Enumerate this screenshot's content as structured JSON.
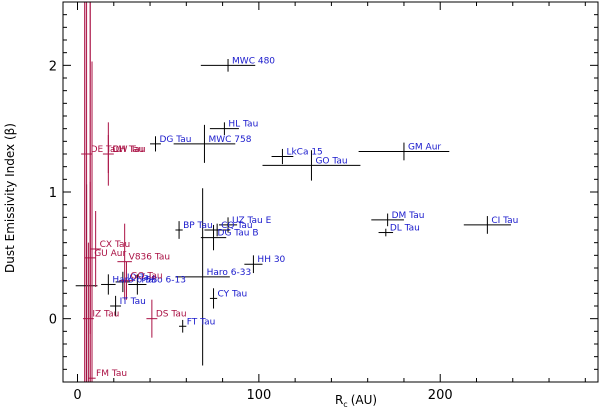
{
  "chart_data": {
    "type": "scatter",
    "title": "",
    "xlabel": "R",
    "xlabel_sub": "c",
    "xlabel_unit": "(AU)",
    "ylabel": "Dust Emissivity Index (β)",
    "xlim": [
      -8,
      287
    ],
    "ylim": [
      -0.5,
      2.5
    ],
    "xticks": [
      0,
      100,
      200
    ],
    "yticks": [
      0,
      1,
      2
    ],
    "colors": {
      "blue": "#1a1acc",
      "red": "#aa1144",
      "black": "#000000"
    },
    "blue_points": [
      {
        "name": "MWC 480",
        "x": 83,
        "xerr": 15,
        "y": 2.0,
        "yerr": 0.05
      },
      {
        "name": "HL Tau",
        "x": 81,
        "xerr": 8,
        "y": 1.5,
        "yerr": 0.05
      },
      {
        "name": "DG Tau",
        "x": 43,
        "xerr": 3,
        "y": 1.38,
        "yerr": 0.06
      },
      {
        "name": "MWC 758",
        "x": 70,
        "xerr": 17,
        "y": 1.38,
        "yerr": 0.15
      },
      {
        "name": "LkCa 15",
        "x": 113,
        "xerr": 6,
        "y": 1.28,
        "yerr": 0.06
      },
      {
        "name": "GO Tau",
        "x": 129,
        "xerr": 27,
        "y": 1.21,
        "yerr": 0.12
      },
      {
        "name": "GM Aur",
        "x": 180,
        "xerr": 25,
        "y": 1.32,
        "yerr": 0.07
      },
      {
        "name": "CI Tau",
        "x": 226,
        "xerr": 13,
        "y": 0.74,
        "yerr": 0.07
      },
      {
        "name": "DM Tau",
        "x": 171,
        "xerr": 9,
        "y": 0.78,
        "yerr": 0.05
      },
      {
        "name": "DL Tau",
        "x": 170,
        "xerr": 4,
        "y": 0.68,
        "yerr": 0.03
      },
      {
        "name": "UZ Tau E",
        "x": 83,
        "xerr": 5,
        "y": 0.74,
        "yerr": 0.06
      },
      {
        "name": "CQ Tau",
        "x": 77,
        "xerr": 7,
        "y": 0.7,
        "yerr": 0.05
      },
      {
        "name": "DG Tau B",
        "x": 75,
        "xerr": 7,
        "y": 0.64,
        "yerr": 0.1
      },
      {
        "name": "BP Tau",
        "x": 56,
        "xerr": 2,
        "y": 0.7,
        "yerr": 0.07
      },
      {
        "name": "HH 30",
        "x": 97,
        "xerr": 5,
        "y": 0.43,
        "yerr": 0.07
      },
      {
        "name": "Haro 6-33",
        "x": 69,
        "xerr": 15,
        "y": 0.33,
        "yerr": 0.7
      },
      {
        "name": "Haro 6-13",
        "x": 33,
        "xerr": 5,
        "y": 0.27,
        "yerr": 0.08
      },
      {
        "name": "Haro 6-5B",
        "x": 17,
        "xerr": 4,
        "y": 0.27,
        "yerr": 0.08
      },
      {
        "name": "CY Tau",
        "x": 75,
        "xerr": 2,
        "y": 0.16,
        "yerr": 0.08
      },
      {
        "name": "IQ Tau",
        "x": 25,
        "xerr": 4,
        "y": 0.29,
        "yerr": 0.08
      },
      {
        "name": "IT Tau",
        "x": 21,
        "xerr": 3,
        "y": 0.1,
        "yerr": 0.08
      },
      {
        "name": "FT Tau",
        "x": 58,
        "xerr": 2,
        "y": -0.06,
        "yerr": 0.05
      }
    ],
    "red_points": [
      {
        "name": "DE Tau",
        "x": 5,
        "xerr": 3,
        "y": 1.3,
        "yerr": 2.0
      },
      {
        "name": "DH Tau",
        "x": 17,
        "xerr": 3,
        "y": 1.3,
        "yerr": 0.25
      },
      {
        "name": "CW Tau",
        "x": 17,
        "xerr": 2,
        "y": 1.3,
        "yerr": 0.15
      },
      {
        "name": "CX Tau",
        "x": 10,
        "xerr": 3,
        "y": 0.55,
        "yerr": 0.3
      },
      {
        "name": "GU Aur",
        "x": 7,
        "xerr": 3,
        "y": 0.48,
        "yerr": 0.6
      },
      {
        "name": "V836 Tau",
        "x": 26,
        "xerr": 4,
        "y": 0.45,
        "yerr": 0.3
      },
      {
        "name": "GO Tau ",
        "x": 27,
        "xerr": 4,
        "y": 0.3,
        "yerr": 0.15
      },
      {
        "name": "IZ Tau",
        "x": 6,
        "xerr": 3,
        "y": 0.0,
        "yerr": 0.6
      },
      {
        "name": "DS Tau",
        "x": 41,
        "xerr": 3,
        "y": 0.0,
        "yerr": 0.15
      },
      {
        "name": "FM Tau",
        "x": 8,
        "xerr": 2,
        "y": -0.47,
        "yerr": 2.5
      }
    ],
    "black_points": [
      {
        "x": 5,
        "xerr": 6,
        "y": 0.26,
        "yerr": 0.8
      }
    ],
    "red_lines": [
      {
        "x": 4,
        "y0": -0.5,
        "y1": 2.5
      },
      {
        "x": 7,
        "y0": -0.5,
        "y1": 2.5
      }
    ]
  }
}
